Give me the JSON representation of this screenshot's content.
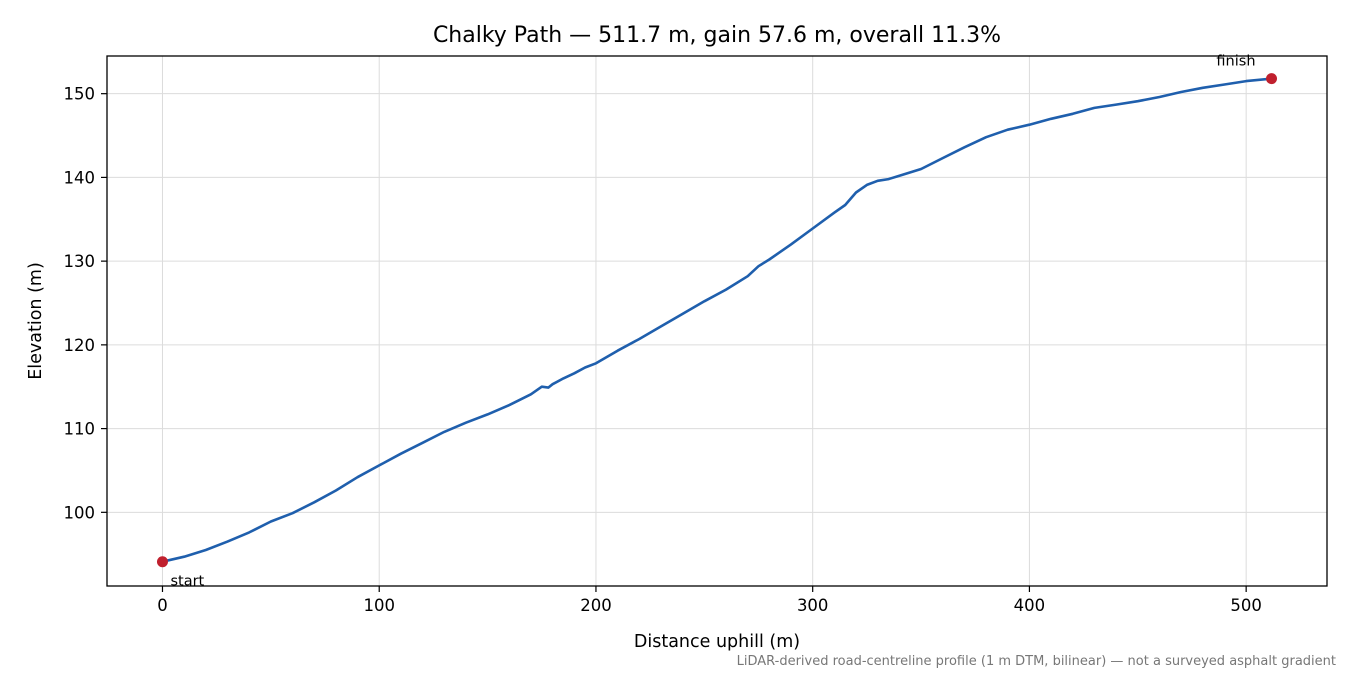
{
  "chart_data": {
    "type": "line",
    "title": "Chalky Path — 511.7 m, gain 57.6 m, overall 11.3%",
    "xlabel": "Distance uphill (m)",
    "ylabel": "Elevation (m)",
    "xlim": [
      -25.6,
      537.3
    ],
    "ylim": [
      91.2,
      154.5
    ],
    "xticks": [
      0,
      100,
      200,
      300,
      400,
      500
    ],
    "yticks": [
      100,
      110,
      120,
      130,
      140,
      150
    ],
    "grid": true,
    "line_color": "#1f5fad",
    "marker_color": "#c0202e",
    "series": [
      {
        "x": [
          0,
          10,
          20,
          30,
          40,
          50,
          60,
          70,
          80,
          90,
          100,
          110,
          120,
          130,
          140,
          150,
          160,
          170,
          175,
          178,
          180,
          185,
          190,
          195,
          200,
          210,
          220,
          230,
          240,
          250,
          260,
          270,
          275,
          280,
          290,
          300,
          310,
          315,
          320,
          325,
          330,
          335,
          340,
          350,
          360,
          370,
          380,
          390,
          400,
          410,
          420,
          430,
          440,
          450,
          460,
          470,
          480,
          490,
          500,
          511.7
        ],
        "y": [
          94.1,
          94.7,
          95.5,
          96.5,
          97.6,
          98.9,
          99.9,
          101.2,
          102.6,
          104.2,
          105.6,
          107.0,
          108.3,
          109.6,
          110.7,
          111.7,
          112.8,
          114.1,
          115.0,
          114.9,
          115.3,
          116.0,
          116.6,
          117.3,
          117.8,
          119.3,
          120.7,
          122.2,
          123.7,
          125.2,
          126.6,
          128.2,
          129.4,
          130.2,
          132.0,
          133.9,
          135.8,
          136.7,
          138.2,
          139.1,
          139.6,
          139.8,
          140.2,
          141.0,
          142.3,
          143.6,
          144.8,
          145.7,
          146.3,
          147.0,
          147.6,
          148.3,
          148.7,
          149.1,
          149.6,
          150.2,
          150.7,
          151.1,
          151.5,
          151.8
        ]
      }
    ],
    "annotations": [
      {
        "text": "start",
        "x": 0,
        "y": 94.1
      },
      {
        "text": "finish",
        "x": 511.7,
        "y": 151.8
      }
    ],
    "footnote": "LiDAR-derived road-centreline profile (1 m DTM, bilinear) — not a surveyed asphalt gradient"
  }
}
